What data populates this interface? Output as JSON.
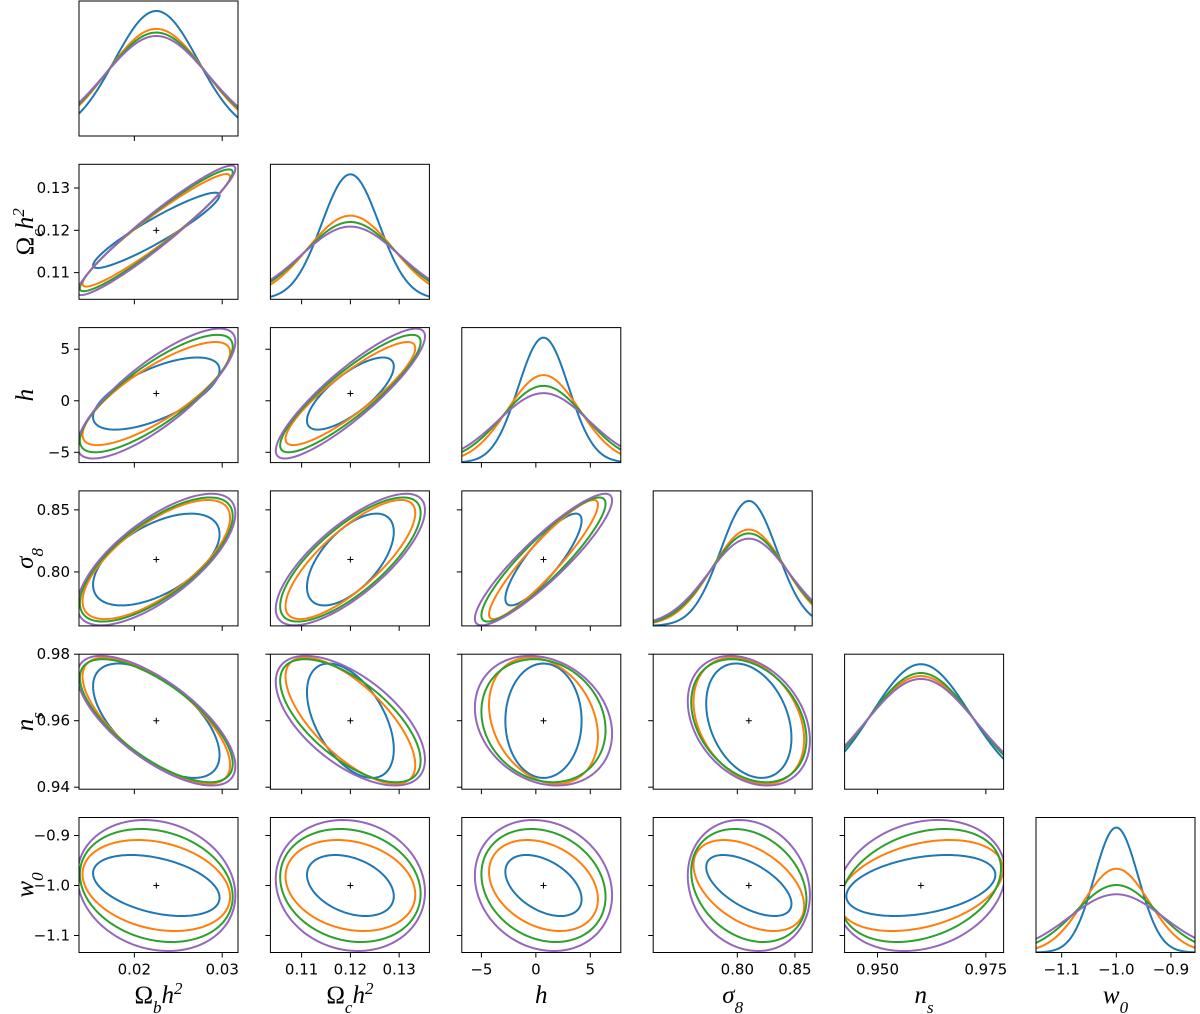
{
  "chart_data": {
    "type": "corner",
    "contour_delta_chi2": 2.3,
    "parameters": [
      {
        "label": [
          {
            "text": "Ω"
          },
          {
            "text": "b",
            "shift": "sub"
          },
          {
            "text": "h"
          },
          {
            "text": "2",
            "shift": "sup"
          }
        ],
        "fiducial": 0.0225,
        "xlim": [
          0.0137,
          0.0318
        ],
        "xticks": [
          0.02,
          0.03
        ]
      },
      {
        "label": [
          {
            "text": "Ω"
          },
          {
            "text": "c",
            "shift": "sub"
          },
          {
            "text": "h"
          },
          {
            "text": "2",
            "shift": "sup"
          }
        ],
        "fiducial": 0.12,
        "xlim": [
          0.1036,
          0.1362
        ],
        "xticks": [
          0.11,
          0.12,
          0.13
        ],
        "ylim": [
          0.1037,
          0.1356
        ],
        "yticks": [
          0.11,
          0.12,
          0.13
        ]
      },
      {
        "label": [
          {
            "text": "h"
          }
        ],
        "fiducial": 0.7,
        "xlim": [
          -6.8,
          7.8
        ],
        "xticks": [
          {
            "value": -5,
            "label": "−5"
          },
          0,
          5
        ],
        "ylim": [
          -6.0,
          7.1
        ],
        "yticks": [
          {
            "value": -5,
            "label": "−5"
          },
          0,
          5
        ]
      },
      {
        "label": [
          {
            "text": "σ"
          },
          {
            "text": "8",
            "shift": "sub"
          }
        ],
        "fiducial": 0.81,
        "xlim": [
          0.727,
          0.865
        ],
        "xticks": [
          {
            "value": 0.8,
            "label": "0.80"
          },
          0.85
        ],
        "ylim": [
          0.7565,
          0.8653
        ],
        "yticks": [
          {
            "value": 0.8,
            "label": "0.80"
          },
          0.85
        ]
      },
      {
        "label": [
          {
            "text": "n"
          },
          {
            "text": "s",
            "shift": "sub"
          }
        ],
        "fiducial": 0.96,
        "xlim": [
          0.9424,
          0.9791
        ],
        "xticks": [
          {
            "value": 0.95,
            "label": "0.950"
          },
          0.975
        ],
        "ylim": [
          0.9394,
          0.98
        ],
        "yticks": [
          0.94,
          0.96,
          0.98
        ]
      },
      {
        "label": [
          {
            "text": "w"
          },
          {
            "text": "0",
            "shift": "sub"
          }
        ],
        "fiducial": -1.0,
        "xlim": [
          -1.147,
          -0.856
        ],
        "xticks": [
          {
            "value": -1.1,
            "label": "−1.1"
          },
          {
            "value": -1.0,
            "label": "−1.0"
          },
          {
            "value": -0.9,
            "label": "−0.9"
          }
        ],
        "ylim": [
          -1.134,
          -0.864
        ],
        "yticks": [
          {
            "value": -1.1,
            "label": "−1.1"
          },
          {
            "value": -1.0,
            "label": "−1.0"
          },
          {
            "value": -0.9,
            "label": "−0.9"
          }
        ]
      }
    ],
    "series": [
      {
        "color": "#1f77b4",
        "extents": [
          0.0072,
          0.0089,
          3.5,
          0.037,
          0.0172,
          0.061
        ],
        "correlations": [
          0.93,
          0.65,
          0.75,
          0.55,
          0.6,
          0.85,
          -0.6,
          -0.5,
          0.0,
          -0.3,
          -0.4,
          -0.35,
          -0.45,
          -0.6,
          0.35
        ]
      },
      {
        "color": "#ff7f0e",
        "extents": [
          0.0084,
          0.0133,
          5.0,
          0.048,
          0.019,
          0.091
        ],
        "correlations": [
          0.95,
          0.8,
          0.88,
          0.7,
          0.78,
          0.92,
          -0.7,
          -0.7,
          -0.25,
          -0.3,
          -0.25,
          -0.2,
          -0.3,
          -0.45,
          0.35
        ]
      },
      {
        "color": "#2ca02c",
        "extents": [
          0.0087,
          0.0144,
          5.7,
          0.05,
          0.0185,
          0.113
        ],
        "correlations": [
          0.95,
          0.8,
          0.88,
          0.7,
          0.75,
          0.9,
          -0.7,
          -0.65,
          -0.15,
          -0.3,
          -0.2,
          -0.15,
          -0.2,
          -0.25,
          0.3
        ]
      },
      {
        "color": "#9467bd",
        "extents": [
          0.009,
          0.0153,
          6.3,
          0.053,
          0.0195,
          0.131
        ],
        "correlations": [
          0.95,
          0.8,
          0.88,
          0.7,
          0.75,
          0.9,
          -0.7,
          -0.6,
          -0.2,
          -0.3,
          -0.15,
          -0.1,
          -0.15,
          -0.15,
          0.2
        ]
      }
    ]
  }
}
